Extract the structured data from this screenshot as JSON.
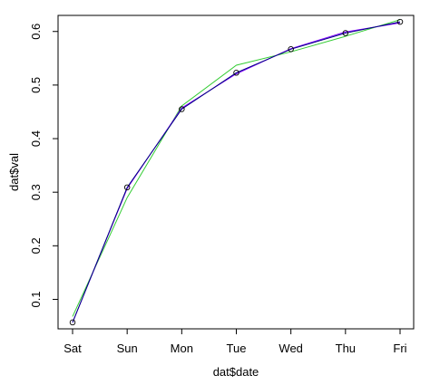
{
  "chart_data": {
    "type": "line",
    "xlabel": "dat$date",
    "ylabel": "dat$val",
    "categories": [
      "Sat",
      "Sun",
      "Mon",
      "Tue",
      "Wed",
      "Thu",
      "Fri"
    ],
    "ylim": [
      0.045,
      0.63
    ],
    "yticks": [
      "0.1",
      "0.2",
      "0.3",
      "0.4",
      "0.5",
      "0.6"
    ],
    "points": [
      0.057,
      0.309,
      0.455,
      0.523,
      0.567,
      0.597,
      0.618
    ],
    "series": [
      {
        "color": "#000080",
        "values": [
          0.057,
          0.309,
          0.455,
          0.523,
          0.567,
          0.597,
          0.618
        ]
      },
      {
        "color": "#8000ff",
        "values": [
          0.057,
          0.307,
          0.457,
          0.521,
          0.568,
          0.599,
          0.616
        ]
      },
      {
        "color": "#33cc33",
        "values": [
          0.068,
          0.29,
          0.461,
          0.537,
          0.562,
          0.591,
          0.622
        ]
      }
    ],
    "grid": false,
    "legend": "none"
  }
}
